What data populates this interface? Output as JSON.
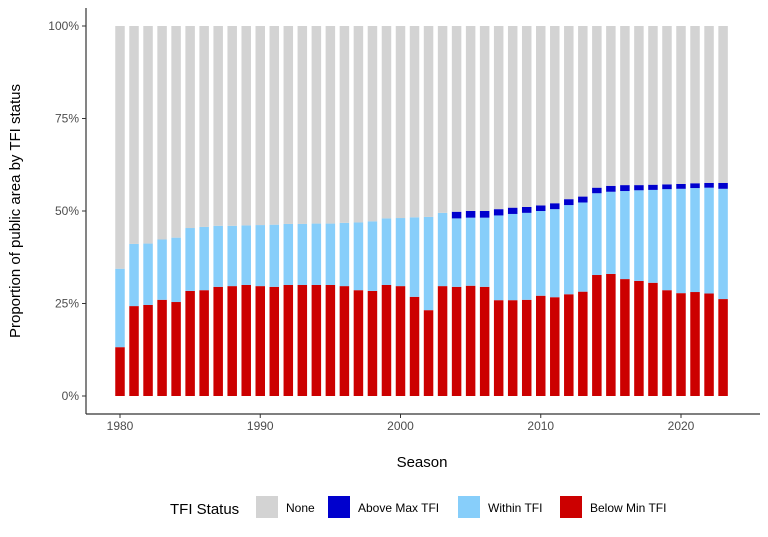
{
  "chart_data": {
    "type": "bar",
    "stacked": true,
    "xlabel": "Season",
    "ylabel": "Proportion of public area by TFI status",
    "ylim": [
      0,
      100
    ],
    "yticks": [
      "0%",
      "25%",
      "50%",
      "75%",
      "100%"
    ],
    "xticks": [
      "1980",
      "1990",
      "2000",
      "2010",
      "2020"
    ],
    "x": [
      1980,
      1981,
      1982,
      1983,
      1984,
      1985,
      1986,
      1987,
      1988,
      1989,
      1990,
      1991,
      1992,
      1993,
      1994,
      1995,
      1996,
      1997,
      1998,
      1999,
      2000,
      2001,
      2002,
      2003,
      2004,
      2005,
      2006,
      2007,
      2008,
      2009,
      2010,
      2011,
      2012,
      2013,
      2014,
      2015,
      2016,
      2017,
      2018,
      2019,
      2020,
      2021,
      2022,
      2023
    ],
    "legend": {
      "title": "TFI Status",
      "placement": "bottom"
    },
    "grid": false,
    "series": [
      {
        "name": "Below Min TFI",
        "color": "#CC0000",
        "values": [
          13.2,
          24.3,
          24.6,
          26,
          25.4,
          28.4,
          28.6,
          29.5,
          29.7,
          30,
          29.7,
          29.5,
          30,
          30,
          30,
          30,
          29.7,
          28.6,
          28.4,
          30,
          29.7,
          26.8,
          23.2,
          29.7,
          29.5,
          29.8,
          29.5,
          25.9,
          25.9,
          26,
          27.1,
          26.7,
          27.5,
          28.2,
          32.7,
          33,
          31.6,
          31.1,
          30.6,
          28.6,
          27.8,
          28.1,
          27.7,
          26.2
        ]
      },
      {
        "name": "Within TFI",
        "color": "#87CEFA",
        "values": [
          21.2,
          16.8,
          16.6,
          16.3,
          17.4,
          17,
          17.1,
          16.5,
          16.3,
          16.1,
          16.5,
          16.8,
          16.5,
          16.5,
          16.6,
          16.6,
          17.1,
          18.3,
          18.8,
          18,
          18.4,
          21.5,
          25.2,
          19.8,
          18.5,
          18.4,
          18.7,
          22.9,
          23.3,
          23.5,
          22.9,
          23.8,
          24.1,
          24.1,
          22.1,
          22.2,
          23.8,
          24.5,
          25.1,
          27.3,
          28.2,
          28.1,
          28.6,
          29.8
        ]
      },
      {
        "name": "Above Max TFI",
        "color": "#0000CD",
        "values": [
          0,
          0,
          0,
          0,
          0,
          0,
          0,
          0,
          0,
          0,
          0,
          0,
          0,
          0,
          0,
          0,
          0,
          0,
          0,
          0,
          0,
          0,
          0,
          0,
          1.8,
          1.8,
          1.8,
          1.7,
          1.7,
          1.6,
          1.5,
          1.6,
          1.6,
          1.6,
          1.5,
          1.6,
          1.6,
          1.4,
          1.4,
          1.3,
          1.3,
          1.3,
          1.3,
          1.6
        ]
      },
      {
        "name": "None",
        "color": "#D3D3D3",
        "values": [
          65.6,
          58.9,
          58.8,
          57.7,
          57.2,
          54.6,
          54.3,
          54,
          54,
          53.9,
          53.8,
          53.7,
          53.5,
          53.5,
          53.4,
          53.4,
          53.2,
          53.1,
          52.8,
          52,
          51.9,
          51.7,
          51.6,
          50.5,
          50.2,
          50,
          50,
          49.5,
          49.1,
          48.9,
          48.5,
          47.9,
          46.8,
          46.1,
          43.7,
          43.2,
          43,
          43,
          42.9,
          42.8,
          42.7,
          42.5,
          42.4,
          42.4
        ]
      }
    ],
    "legend_order": [
      "None",
      "Above Max TFI",
      "Within TFI",
      "Below Min TFI"
    ]
  }
}
